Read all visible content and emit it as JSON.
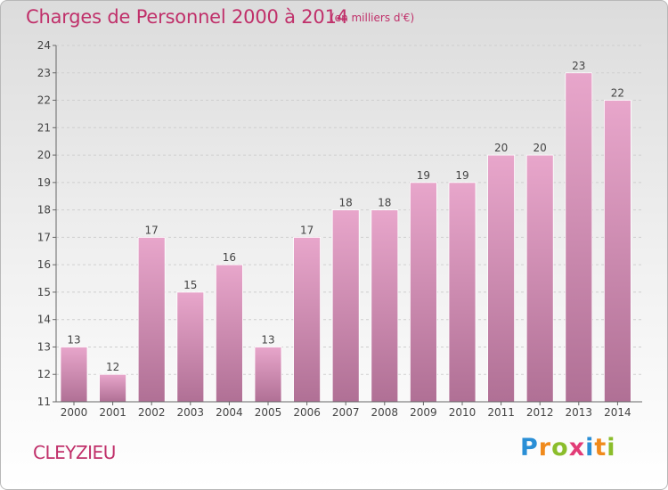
{
  "header": {
    "title": "Charges de Personnel 2000 à 2014",
    "subtitle": "(en milliers d'€)"
  },
  "footer": {
    "commune": "CLEYZIEU",
    "logo": "Proxiti"
  },
  "colors": {
    "bar_top": "#e8a6cb",
    "bar_bottom": "#b07095",
    "text": "#c0306a",
    "label": "#444444"
  },
  "chart_data": {
    "type": "bar",
    "categories": [
      "2000",
      "2001",
      "2002",
      "2003",
      "2004",
      "2005",
      "2006",
      "2007",
      "2008",
      "2009",
      "2010",
      "2011",
      "2012",
      "2013",
      "2014"
    ],
    "values": [
      13,
      12,
      17,
      15,
      16,
      13,
      17,
      18,
      18,
      19,
      19,
      20,
      20,
      23,
      22
    ],
    "data_labels": [
      "13",
      "12",
      "17",
      "15",
      "16",
      "13",
      "17",
      "18",
      "18",
      "19",
      "19",
      "20",
      "20",
      "23",
      "22"
    ],
    "title": "Charges de Personnel 2000 à 2014",
    "subtitle": "(en milliers d'€)",
    "xlabel": "",
    "ylabel": "",
    "ylim": [
      11,
      24
    ],
    "yticks": [
      "11",
      "12",
      "13",
      "14",
      "15",
      "16",
      "17",
      "18",
      "19",
      "20",
      "21",
      "22",
      "23",
      "24"
    ],
    "grid": "horizontal",
    "legend": "none"
  }
}
